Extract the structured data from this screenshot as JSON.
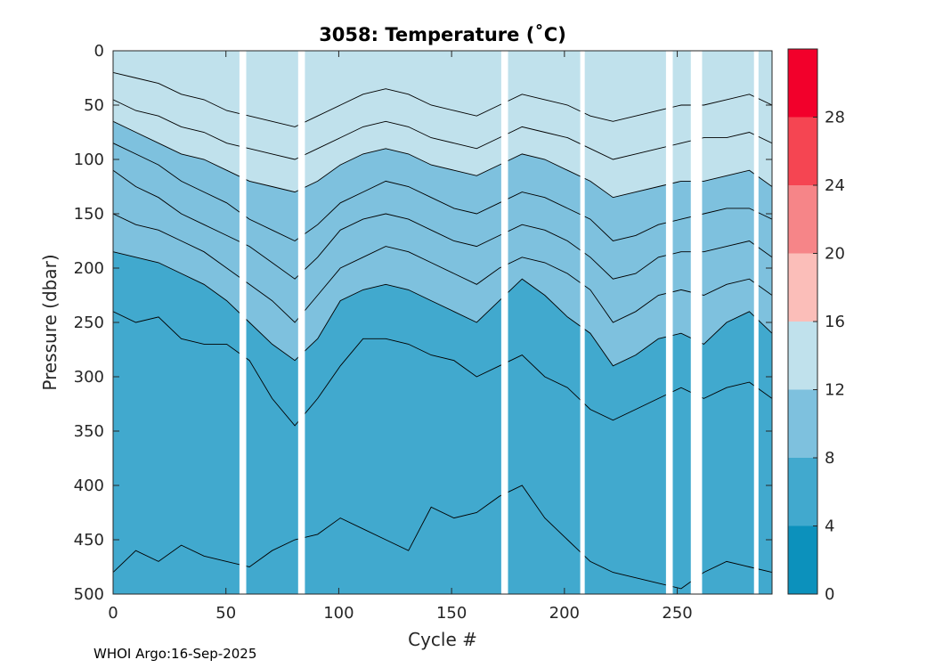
{
  "chart_data": {
    "type": "heatmap",
    "title": "3058:  Temperature (˚C)",
    "xlabel": "Cycle #",
    "ylabel": "Pressure (dbar)",
    "xlim": [
      0,
      292
    ],
    "ylim": [
      0,
      500
    ],
    "y_inverted": true,
    "xticks": [
      0,
      50,
      100,
      150,
      200,
      250
    ],
    "yticks": [
      0,
      50,
      100,
      150,
      200,
      250,
      300,
      350,
      400,
      450,
      500
    ],
    "colorbar": {
      "limits": [
        0,
        32
      ],
      "ticks": [
        0,
        4,
        8,
        12,
        16,
        20,
        24,
        28
      ],
      "levels": [
        {
          "from": 0,
          "to": 4,
          "color": "#0C91BC"
        },
        {
          "from": 4,
          "to": 8,
          "color": "#41A9CE"
        },
        {
          "from": 8,
          "to": 12,
          "color": "#7EC1DE"
        },
        {
          "from": 12,
          "to": 16,
          "color": "#C0E1EC"
        },
        {
          "from": 16,
          "to": 20,
          "color": "#FBBEB9"
        },
        {
          "from": 20,
          "to": 24,
          "color": "#F68588"
        },
        {
          "from": 24,
          "to": 28,
          "color": "#F54552"
        },
        {
          "from": 28,
          "to": 32,
          "color": "#F2002B"
        }
      ]
    },
    "data_gaps_cycles": [
      [
        56,
        59
      ],
      [
        82,
        85
      ],
      [
        172,
        175
      ],
      [
        207,
        209
      ],
      [
        245,
        248
      ],
      [
        256,
        261
      ],
      [
        284,
        286
      ]
    ],
    "isotherms": [
      {
        "temp": 7,
        "depths": [
          240,
          250,
          245,
          265,
          270,
          270,
          285,
          320,
          345,
          320,
          290,
          265,
          265,
          270,
          280,
          285,
          300,
          290,
          280,
          300,
          310,
          330,
          340,
          330,
          320,
          310,
          320,
          310,
          305,
          320
        ]
      },
      {
        "temp": 8,
        "depths": [
          185,
          190,
          195,
          205,
          215,
          230,
          250,
          270,
          285,
          265,
          230,
          220,
          215,
          220,
          230,
          240,
          250,
          230,
          210,
          225,
          245,
          260,
          290,
          280,
          265,
          260,
          270,
          250,
          240,
          260
        ]
      },
      {
        "temp": 9,
        "depths": [
          150,
          160,
          165,
          175,
          185,
          200,
          215,
          230,
          250,
          225,
          200,
          190,
          180,
          185,
          195,
          205,
          215,
          200,
          190,
          195,
          205,
          220,
          250,
          240,
          225,
          220,
          225,
          215,
          210,
          225
        ]
      },
      {
        "temp": 10,
        "depths": [
          110,
          125,
          135,
          150,
          160,
          170,
          180,
          195,
          210,
          190,
          165,
          155,
          150,
          155,
          165,
          175,
          180,
          170,
          160,
          165,
          175,
          190,
          210,
          205,
          190,
          185,
          185,
          180,
          175,
          190
        ]
      },
      {
        "temp": 11,
        "depths": [
          85,
          95,
          105,
          120,
          130,
          140,
          155,
          165,
          175,
          160,
          140,
          130,
          120,
          125,
          135,
          145,
          150,
          140,
          130,
          135,
          145,
          155,
          175,
          170,
          160,
          155,
          150,
          145,
          145,
          155
        ]
      },
      {
        "temp": 12,
        "depths": [
          65,
          75,
          85,
          95,
          100,
          110,
          120,
          125,
          130,
          120,
          105,
          95,
          90,
          95,
          105,
          110,
          115,
          105,
          95,
          100,
          110,
          120,
          135,
          130,
          125,
          120,
          120,
          115,
          110,
          125
        ]
      },
      {
        "temp": 13,
        "depths": [
          45,
          55,
          60,
          70,
          75,
          85,
          90,
          95,
          100,
          90,
          80,
          70,
          65,
          70,
          80,
          85,
          90,
          80,
          70,
          75,
          80,
          90,
          100,
          95,
          90,
          85,
          80,
          80,
          75,
          85
        ]
      },
      {
        "temp": 14,
        "depths": [
          20,
          25,
          30,
          40,
          45,
          55,
          60,
          65,
          70,
          60,
          50,
          40,
          35,
          40,
          50,
          55,
          60,
          50,
          40,
          45,
          50,
          60,
          65,
          60,
          55,
          50,
          50,
          45,
          40,
          50
        ]
      },
      {
        "temp": 6,
        "depths": [
          480,
          460,
          470,
          455,
          465,
          470,
          475,
          460,
          450,
          445,
          430,
          440,
          450,
          460,
          420,
          430,
          425,
          410,
          400,
          430,
          450,
          470,
          480,
          485,
          490,
          495,
          480,
          470,
          475,
          480
        ]
      }
    ]
  },
  "footer": "WHOI Argo:16-Sep-2025"
}
